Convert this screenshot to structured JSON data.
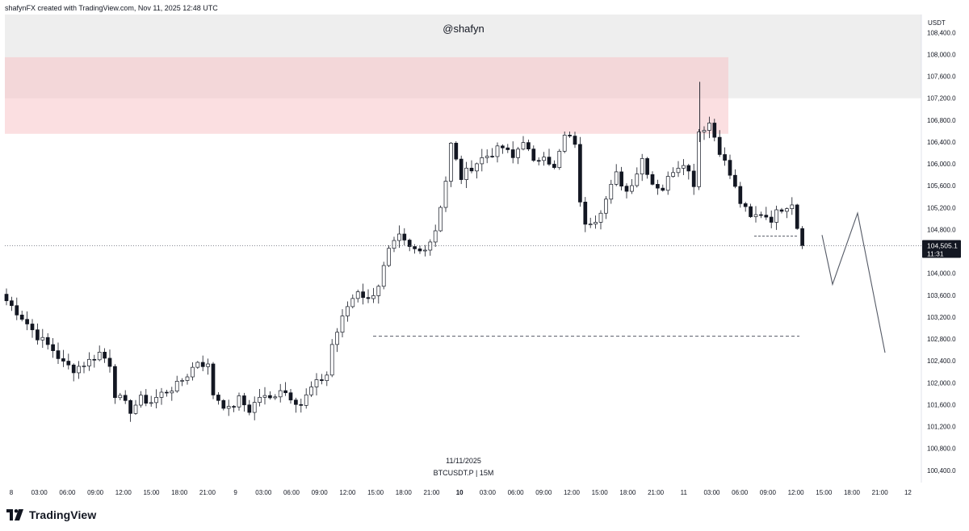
{
  "header": {
    "text": "shafynFX created with TradingView.com, Nov 11, 2025 12:48 UTC"
  },
  "brand": {
    "name": "TradingView",
    "logo_icon": "tradingview-logo-icon"
  },
  "colors": {
    "candle": "#131722",
    "supply_zone": "#f7c5c8",
    "upper_zone": "#e8e8e8",
    "price_label_bg": "#131722",
    "price_label_text": "#ffffff",
    "projection": "#555a66",
    "dashed_level": "#555a66"
  },
  "chart_data": {
    "type": "candlestick",
    "symbol_label": "BTCUSDT.P | 15M",
    "date_label": "11/11/2025",
    "watermark": "@shafyn",
    "currency": "USDT",
    "ylim": [
      100200,
      108700
    ],
    "y_ticks": [
      "108,400.0",
      "108,000.0",
      "107,600.0",
      "107,200.0",
      "106,800.0",
      "106,400.0",
      "106,000.0",
      "105,600.0",
      "105,200.0",
      "104,800.0",
      "104,400.0",
      "104,000.0",
      "103,600.0",
      "103,200.0",
      "102,800.0",
      "102,400.0",
      "102,000.0",
      "101,600.0",
      "101,200.0",
      "100,800.0",
      "100,400.0"
    ],
    "x_ticks": [
      "8",
      "03:00",
      "06:00",
      "09:00",
      "12:00",
      "15:00",
      "18:00",
      "21:00",
      "9",
      "03:00",
      "06:00",
      "09:00",
      "12:00",
      "15:00",
      "18:00",
      "21:00",
      "10",
      "03:00",
      "06:00",
      "09:00",
      "12:00",
      "15:00",
      "18:00",
      "21:00",
      "11",
      "03:00",
      "06:00",
      "09:00",
      "12:00",
      "15:00",
      "18:00",
      "21:00",
      "12"
    ],
    "bold_x_ticks": [
      "10"
    ],
    "current_price": {
      "value": 104505.1,
      "label": "104,505.1",
      "countdown": "11:31"
    },
    "zones": [
      {
        "name": "upper-zone",
        "from": 107200,
        "to": 108700
      },
      {
        "name": "supply-zone",
        "from": 106550,
        "to": 107950
      }
    ],
    "levels": [
      {
        "name": "low-liquidity-level",
        "value": 102850
      },
      {
        "name": "recent-low-level",
        "value": 104680
      }
    ],
    "projection_path": [
      104700,
      103800,
      105100,
      102550
    ],
    "price_path": [
      [
        0,
        103500
      ],
      [
        3,
        103200
      ],
      [
        6,
        102850
      ],
      [
        9,
        102600
      ],
      [
        11,
        102350
      ],
      [
        13,
        102250
      ],
      [
        16,
        102400
      ],
      [
        18,
        102550
      ],
      [
        20,
        102350
      ],
      [
        21,
        101800
      ],
      [
        24,
        101500
      ],
      [
        26,
        101700
      ],
      [
        28,
        101650
      ],
      [
        30,
        101800
      ],
      [
        33,
        101950
      ],
      [
        35,
        102150
      ],
      [
        37,
        102400
      ],
      [
        39,
        102300
      ],
      [
        40,
        101800
      ],
      [
        43,
        101500
      ],
      [
        45,
        101700
      ],
      [
        47,
        101500
      ],
      [
        49,
        101750
      ],
      [
        51,
        101700
      ],
      [
        53,
        101900
      ],
      [
        55,
        101750
      ],
      [
        57,
        101600
      ],
      [
        59,
        101900
      ],
      [
        62,
        102150
      ],
      [
        63,
        102700
      ],
      [
        66,
        103400
      ],
      [
        68,
        103700
      ],
      [
        70,
        103500
      ],
      [
        72,
        103800
      ],
      [
        74,
        104400
      ],
      [
        76,
        104650
      ],
      [
        78,
        104450
      ],
      [
        80,
        104400
      ],
      [
        82,
        104600
      ],
      [
        83,
        104800
      ],
      [
        85,
        105700
      ],
      [
        86,
        106350
      ],
      [
        88,
        105750
      ],
      [
        90,
        105950
      ],
      [
        92,
        106100
      ],
      [
        94,
        106200
      ],
      [
        96,
        106300
      ],
      [
        98,
        106100
      ],
      [
        100,
        106450
      ],
      [
        102,
        106000
      ],
      [
        104,
        106200
      ],
      [
        106,
        105900
      ],
      [
        108,
        106500
      ],
      [
        110,
        106400
      ],
      [
        111,
        105250
      ],
      [
        112,
        104950
      ],
      [
        114,
        105000
      ],
      [
        116,
        105350
      ],
      [
        118,
        105800
      ],
      [
        120,
        105500
      ],
      [
        122,
        105850
      ],
      [
        123,
        106100
      ],
      [
        125,
        105650
      ],
      [
        127,
        105550
      ],
      [
        129,
        105900
      ],
      [
        131,
        106050
      ],
      [
        133,
        105650
      ],
      [
        134,
        106600
      ],
      [
        136,
        106750
      ],
      [
        138,
        106250
      ],
      [
        140,
        105800
      ],
      [
        142,
        105300
      ],
      [
        144,
        105000
      ],
      [
        146,
        105100
      ],
      [
        148,
        105000
      ],
      [
        150,
        105200
      ],
      [
        152,
        105300
      ],
      [
        153,
        104850
      ],
      [
        154,
        104500
      ]
    ]
  }
}
